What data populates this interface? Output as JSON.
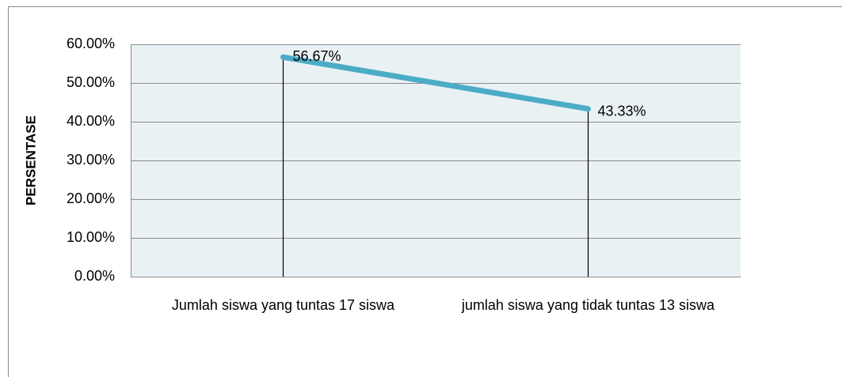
{
  "chart_data": {
    "type": "line",
    "y_label": "PERSENTASE",
    "categories": [
      "Jumlah siswa yang tuntas 17 siswa",
      "jumlah siswa yang tidak tuntas 13 siswa"
    ],
    "values": [
      56.67,
      43.33
    ],
    "value_labels": [
      "56.67%",
      "43.33%"
    ],
    "color": "#4bacc6",
    "ylim": [
      0,
      60
    ],
    "yticks": [
      {
        "value": 0,
        "label": "0.00%"
      },
      {
        "value": 10,
        "label": "10.00%"
      },
      {
        "value": 20,
        "label": "20.00%"
      },
      {
        "value": 30,
        "label": "30.00%"
      },
      {
        "value": 40,
        "label": "40.00%"
      },
      {
        "value": 50,
        "label": "50.00%"
      },
      {
        "value": 60,
        "label": "60.00%"
      }
    ],
    "grid": true,
    "drop_lines": true
  }
}
